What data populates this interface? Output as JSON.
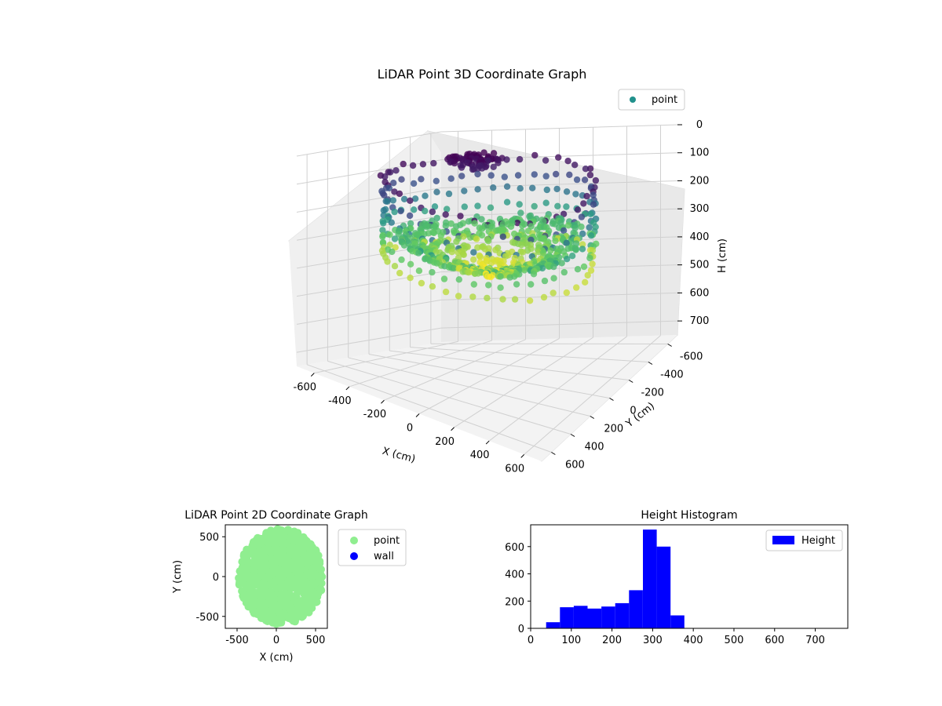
{
  "chart_data": [
    {
      "type": "scatter3d",
      "title": "LiDAR Point 3D Coordinate Graph",
      "xlabel": "X (cm)",
      "ylabel": "Y (cm)",
      "zlabel": "H (cm)",
      "xlim": [
        -700,
        700
      ],
      "ylim": [
        -700,
        700
      ],
      "zlim": [
        0,
        750
      ],
      "zinverted": true,
      "xticks": [
        "-600",
        "-400",
        "-200",
        "0",
        "200",
        "400",
        "600"
      ],
      "yticks": [
        "-600",
        "-400",
        "-200",
        "0",
        "200",
        "400",
        "600"
      ],
      "zticks": [
        "0",
        "100",
        "200",
        "300",
        "400",
        "500",
        "600",
        "700"
      ],
      "legend": [
        {
          "label": "point",
          "color": "#21918c"
        }
      ],
      "legend_loc": "top-right",
      "colormap": [
        "#440154",
        "#3b528b",
        "#21918c",
        "#5ec962",
        "#fde725"
      ],
      "series": [
        {
          "name": "point",
          "description": "ring of wall points plus interior floor points colored by height",
          "wall_radius_x": 560,
          "wall_radius_y": 520,
          "height_range": [
            50,
            380
          ]
        }
      ]
    },
    {
      "type": "scatter",
      "title": "LiDAR Point 2D Coordinate Graph",
      "xlabel": "X (cm)",
      "ylabel": "Y (cm)",
      "xlim": [
        -650,
        650
      ],
      "ylim": [
        -650,
        650
      ],
      "xticks": [
        "-500",
        "0",
        "500"
      ],
      "yticks": [
        "-500",
        "0",
        "500"
      ],
      "series": [
        {
          "name": "point",
          "color": "#90ee90",
          "extent_x": [
            -500,
            600
          ],
          "extent_y": [
            -600,
            600
          ]
        },
        {
          "name": "wall",
          "color": "#0000ff",
          "points": []
        }
      ],
      "legend": [
        {
          "label": "point",
          "color": "#90ee90"
        },
        {
          "label": "wall",
          "color": "#0000ff"
        }
      ]
    },
    {
      "type": "bar",
      "title": "Height Histogram",
      "xlabel": "",
      "ylabel": "",
      "xlim": [
        0,
        780
      ],
      "ylim": [
        0,
        760
      ],
      "xticks": [
        "0",
        "100",
        "200",
        "300",
        "400",
        "500",
        "600",
        "700"
      ],
      "yticks": [
        "0",
        "200",
        "400",
        "600"
      ],
      "bin_width": 34,
      "bin_starts": [
        38,
        72,
        106,
        140,
        174,
        208,
        242,
        276,
        310,
        344
      ],
      "values": [
        45,
        155,
        165,
        145,
        160,
        185,
        280,
        725,
        600,
        95
      ],
      "color": "#0000ff",
      "legend": [
        {
          "label": "Height",
          "color": "#0000ff"
        }
      ],
      "legend_loc": "top-right"
    }
  ]
}
